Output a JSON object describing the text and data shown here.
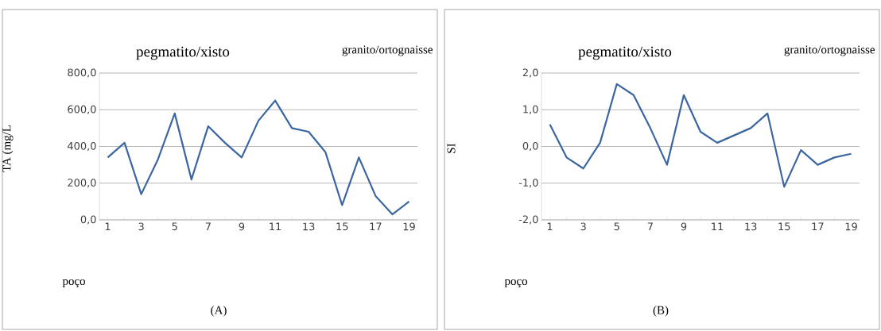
{
  "chart_data": [
    {
      "type": "line",
      "xlabel": "poço",
      "ylabel": "TA (mg/L",
      "categories": [
        "1",
        null,
        "3",
        null,
        "5",
        null,
        "7",
        null,
        "9",
        null,
        "11",
        null,
        "13",
        null,
        "15",
        null,
        "17",
        null,
        "19"
      ],
      "values": [
        340,
        420,
        140,
        330,
        580,
        220,
        510,
        420,
        340,
        540,
        650,
        500,
        480,
        370,
        80,
        340,
        130,
        30,
        100
      ],
      "color": "#3b66a0",
      "ylim": [
        0,
        800
      ],
      "yticks": [
        {
          "value": 0,
          "label": "0,0"
        },
        {
          "value": 200,
          "label": "200,0"
        },
        {
          "value": 400,
          "label": "400,0"
        },
        {
          "value": 600,
          "label": "600,0"
        },
        {
          "value": 800,
          "label": "800,0"
        }
      ],
      "grid": "y",
      "annotations": [
        "pegmatito/xisto",
        "granito/ortognaisse",
        "(A)"
      ]
    },
    {
      "type": "line",
      "xlabel": "poço",
      "ylabel": "SI",
      "categories": [
        "1",
        null,
        "3",
        null,
        "5",
        null,
        "7",
        null,
        "9",
        null,
        "11",
        null,
        "13",
        null,
        "15",
        null,
        "17",
        null,
        "19"
      ],
      "values": [
        0.6,
        -0.3,
        -0.6,
        0.1,
        1.7,
        1.4,
        0.5,
        -0.5,
        1.4,
        0.4,
        0.1,
        0.3,
        0.5,
        0.9,
        -1.1,
        -0.1,
        -0.5,
        -0.3,
        -0.2
      ],
      "color": "#3b66a0",
      "ylim": [
        -2,
        2
      ],
      "yticks": [
        {
          "value": -2,
          "label": "-2,0"
        },
        {
          "value": -1,
          "label": "-1,0"
        },
        {
          "value": 0,
          "label": "0,0"
        },
        {
          "value": 1,
          "label": "1,0"
        },
        {
          "value": 2,
          "label": "2,0"
        }
      ],
      "grid": "y",
      "annotations": [
        "pegmatito/xisto",
        "granito/ortognaisse",
        "(B)"
      ]
    }
  ]
}
